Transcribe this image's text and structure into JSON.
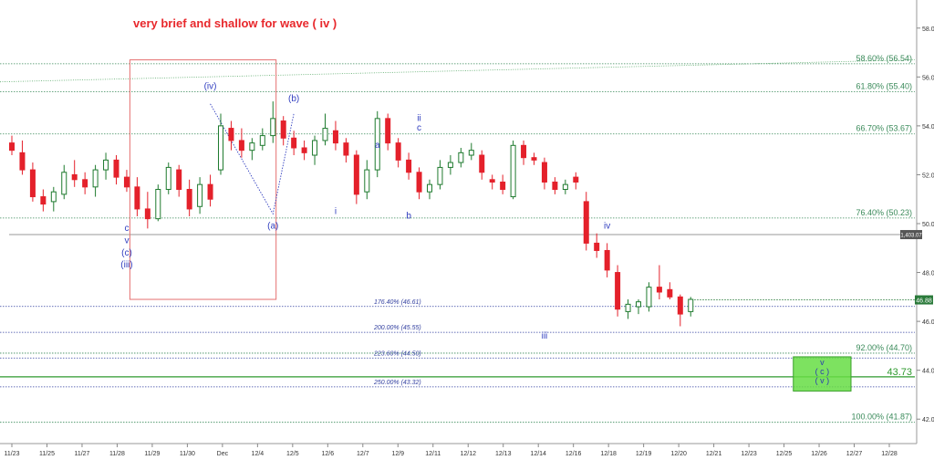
{
  "chart_data": {
    "type": "candlestick",
    "title": "very brief and shallow for wave ( iv )",
    "colors": {
      "up": "#1e7a2e",
      "down": "#e4212b",
      "fib": "#3a8a5a",
      "ext": "#3340a0",
      "annotation_wave": "#3340c0",
      "title": "#e8282c"
    },
    "y_axis": {
      "ticks": [
        "58.00",
        "56.00",
        "54.00",
        "52.00",
        "50.00",
        "48.00",
        "46.00",
        "44.00",
        "42.00"
      ],
      "range": [
        41.0,
        59.0
      ]
    },
    "x_axis": {
      "ticks": [
        "11/23",
        "11/25",
        "11/27",
        "11/28",
        "11/29",
        "11/30",
        "Dec",
        "12/4",
        "12/5",
        "12/6",
        "12/7",
        "12/9",
        "12/11",
        "12/12",
        "12/13",
        "12/14",
        "12/16",
        "12/18",
        "12/19",
        "12/20",
        "12/21",
        "12/23",
        "12/25",
        "12/26",
        "12/27",
        "12/28"
      ]
    },
    "price_tags": {
      "current": "46.88",
      "crosshair": "1,403.07",
      "target": "43.73"
    },
    "fib_retracements": [
      {
        "label": "58.60% (56.54)",
        "price": 56.54
      },
      {
        "label": "61.80% (55.40)",
        "price": 55.4
      },
      {
        "label": "66.70% (53.67)",
        "price": 53.67
      },
      {
        "label": "76.40% (50.23)",
        "price": 50.23
      },
      {
        "label": "92.00% (44.70)",
        "price": 44.7
      },
      {
        "label": "100.00% (41.87)",
        "price": 41.87
      }
    ],
    "fib_extensions": [
      {
        "label": "176.40% (46.61)",
        "price": 46.61
      },
      {
        "label": "200.00% (45.55)",
        "price": 45.55
      },
      {
        "label": "223.60% (44.50)",
        "price": 44.5
      },
      {
        "label": "250.00% (43.32)",
        "price": 43.32
      }
    ],
    "wave_labels": [
      {
        "text": "c",
        "bar": 11,
        "price": 49.7
      },
      {
        "text": "v",
        "bar": 11,
        "price": 49.2
      },
      {
        "text": "(c)",
        "bar": 11,
        "price": 48.7
      },
      {
        "text": "(iii)",
        "bar": 11,
        "price": 48.2
      },
      {
        "text": "(iv)",
        "bar": 19,
        "price": 55.5
      },
      {
        "text": "(a)",
        "bar": 25,
        "price": 49.8
      },
      {
        "text": "(b)",
        "bar": 27,
        "price": 55.0
      },
      {
        "text": "i",
        "bar": 31,
        "price": 50.4
      },
      {
        "text": "a",
        "bar": 35,
        "price": 53.1
      },
      {
        "text": "b",
        "bar": 38,
        "price": 50.2
      },
      {
        "text": "ii",
        "bar": 39,
        "price": 54.2
      },
      {
        "text": "c",
        "bar": 39,
        "price": 53.8
      },
      {
        "text": "iii",
        "bar": 51,
        "price": 45.3
      },
      {
        "text": "iv",
        "bar": 57,
        "price": 49.8
      }
    ],
    "target_box_labels": [
      "v",
      "( c )",
      "( v )"
    ],
    "candles": [
      {
        "o": 53.3,
        "h": 53.6,
        "l": 52.8,
        "c": 53.0
      },
      {
        "o": 52.9,
        "h": 53.4,
        "l": 52.0,
        "c": 52.2
      },
      {
        "o": 52.2,
        "h": 52.5,
        "l": 50.9,
        "c": 51.1
      },
      {
        "o": 51.1,
        "h": 51.4,
        "l": 50.5,
        "c": 50.8
      },
      {
        "o": 50.9,
        "h": 51.5,
        "l": 50.5,
        "c": 51.3
      },
      {
        "o": 51.2,
        "h": 52.4,
        "l": 51.0,
        "c": 52.1
      },
      {
        "o": 52.0,
        "h": 52.6,
        "l": 51.5,
        "c": 51.8
      },
      {
        "o": 51.8,
        "h": 52.1,
        "l": 51.2,
        "c": 51.5
      },
      {
        "o": 51.5,
        "h": 52.4,
        "l": 51.1,
        "c": 52.2
      },
      {
        "o": 52.2,
        "h": 52.9,
        "l": 51.8,
        "c": 52.6
      },
      {
        "o": 52.6,
        "h": 52.8,
        "l": 51.6,
        "c": 51.9
      },
      {
        "o": 51.9,
        "h": 52.2,
        "l": 51.3,
        "c": 51.5
      },
      {
        "o": 51.5,
        "h": 51.9,
        "l": 50.3,
        "c": 50.6
      },
      {
        "o": 50.6,
        "h": 51.3,
        "l": 49.8,
        "c": 50.2
      },
      {
        "o": 50.2,
        "h": 51.6,
        "l": 50.1,
        "c": 51.4
      },
      {
        "o": 51.4,
        "h": 52.5,
        "l": 51.2,
        "c": 52.3
      },
      {
        "o": 52.2,
        "h": 52.4,
        "l": 51.1,
        "c": 51.4
      },
      {
        "o": 51.4,
        "h": 51.8,
        "l": 50.3,
        "c": 50.6
      },
      {
        "o": 50.7,
        "h": 51.9,
        "l": 50.4,
        "c": 51.6
      },
      {
        "o": 51.6,
        "h": 52.0,
        "l": 50.7,
        "c": 51.0
      },
      {
        "o": 52.2,
        "h": 54.5,
        "l": 52.0,
        "c": 54.0
      },
      {
        "o": 53.9,
        "h": 54.2,
        "l": 53.0,
        "c": 53.4
      },
      {
        "o": 53.4,
        "h": 53.9,
        "l": 52.7,
        "c": 53.0
      },
      {
        "o": 53.0,
        "h": 53.5,
        "l": 52.6,
        "c": 53.3
      },
      {
        "o": 53.2,
        "h": 53.9,
        "l": 53.0,
        "c": 53.6
      },
      {
        "o": 53.6,
        "h": 55.0,
        "l": 53.3,
        "c": 54.3
      },
      {
        "o": 54.2,
        "h": 54.4,
        "l": 53.2,
        "c": 53.5
      },
      {
        "o": 53.5,
        "h": 53.8,
        "l": 52.8,
        "c": 53.1
      },
      {
        "o": 53.1,
        "h": 53.4,
        "l": 52.6,
        "c": 52.9
      },
      {
        "o": 52.8,
        "h": 53.6,
        "l": 52.4,
        "c": 53.4
      },
      {
        "o": 53.4,
        "h": 54.5,
        "l": 53.2,
        "c": 53.9
      },
      {
        "o": 53.8,
        "h": 54.2,
        "l": 53.0,
        "c": 53.3
      },
      {
        "o": 53.3,
        "h": 53.5,
        "l": 52.5,
        "c": 52.8
      },
      {
        "o": 52.8,
        "h": 53.0,
        "l": 50.8,
        "c": 51.2
      },
      {
        "o": 51.3,
        "h": 52.6,
        "l": 51.0,
        "c": 52.2
      },
      {
        "o": 52.2,
        "h": 54.6,
        "l": 51.9,
        "c": 54.3
      },
      {
        "o": 54.3,
        "h": 54.5,
        "l": 53.0,
        "c": 53.3
      },
      {
        "o": 53.3,
        "h": 53.5,
        "l": 52.3,
        "c": 52.6
      },
      {
        "o": 52.6,
        "h": 52.9,
        "l": 51.8,
        "c": 52.1
      },
      {
        "o": 52.1,
        "h": 52.3,
        "l": 51.0,
        "c": 51.3
      },
      {
        "o": 51.3,
        "h": 51.8,
        "l": 51.0,
        "c": 51.6
      },
      {
        "o": 51.6,
        "h": 52.6,
        "l": 51.4,
        "c": 52.3
      },
      {
        "o": 52.3,
        "h": 52.8,
        "l": 52.0,
        "c": 52.5
      },
      {
        "o": 52.5,
        "h": 53.1,
        "l": 52.3,
        "c": 52.9
      },
      {
        "o": 52.8,
        "h": 53.3,
        "l": 52.6,
        "c": 53.0
      },
      {
        "o": 52.8,
        "h": 53.0,
        "l": 51.8,
        "c": 52.1
      },
      {
        "o": 51.8,
        "h": 52.0,
        "l": 51.4,
        "c": 51.7
      },
      {
        "o": 51.7,
        "h": 52.0,
        "l": 51.2,
        "c": 51.4
      },
      {
        "o": 51.1,
        "h": 53.4,
        "l": 51.0,
        "c": 53.2
      },
      {
        "o": 53.2,
        "h": 53.4,
        "l": 52.4,
        "c": 52.7
      },
      {
        "o": 52.7,
        "h": 52.9,
        "l": 52.4,
        "c": 52.6
      },
      {
        "o": 52.5,
        "h": 52.7,
        "l": 51.4,
        "c": 51.7
      },
      {
        "o": 51.7,
        "h": 51.9,
        "l": 51.2,
        "c": 51.4
      },
      {
        "o": 51.4,
        "h": 51.8,
        "l": 51.2,
        "c": 51.6
      },
      {
        "o": 51.9,
        "h": 52.1,
        "l": 51.4,
        "c": 51.7
      },
      {
        "o": 50.9,
        "h": 51.3,
        "l": 48.9,
        "c": 49.2
      },
      {
        "o": 49.2,
        "h": 49.6,
        "l": 48.6,
        "c": 48.9
      },
      {
        "o": 48.9,
        "h": 49.2,
        "l": 47.8,
        "c": 48.1
      },
      {
        "o": 48.0,
        "h": 48.3,
        "l": 46.2,
        "c": 46.5
      },
      {
        "o": 46.4,
        "h": 46.9,
        "l": 46.1,
        "c": 46.7
      },
      {
        "o": 46.6,
        "h": 46.9,
        "l": 46.3,
        "c": 46.8
      },
      {
        "o": 46.6,
        "h": 47.6,
        "l": 46.4,
        "c": 47.4
      },
      {
        "o": 47.4,
        "h": 48.3,
        "l": 46.9,
        "c": 47.2
      },
      {
        "o": 47.3,
        "h": 47.6,
        "l": 46.9,
        "c": 47.0
      },
      {
        "o": 47.0,
        "h": 47.1,
        "l": 45.8,
        "c": 46.3
      },
      {
        "o": 46.4,
        "h": 47.0,
        "l": 46.2,
        "c": 46.9
      }
    ]
  }
}
